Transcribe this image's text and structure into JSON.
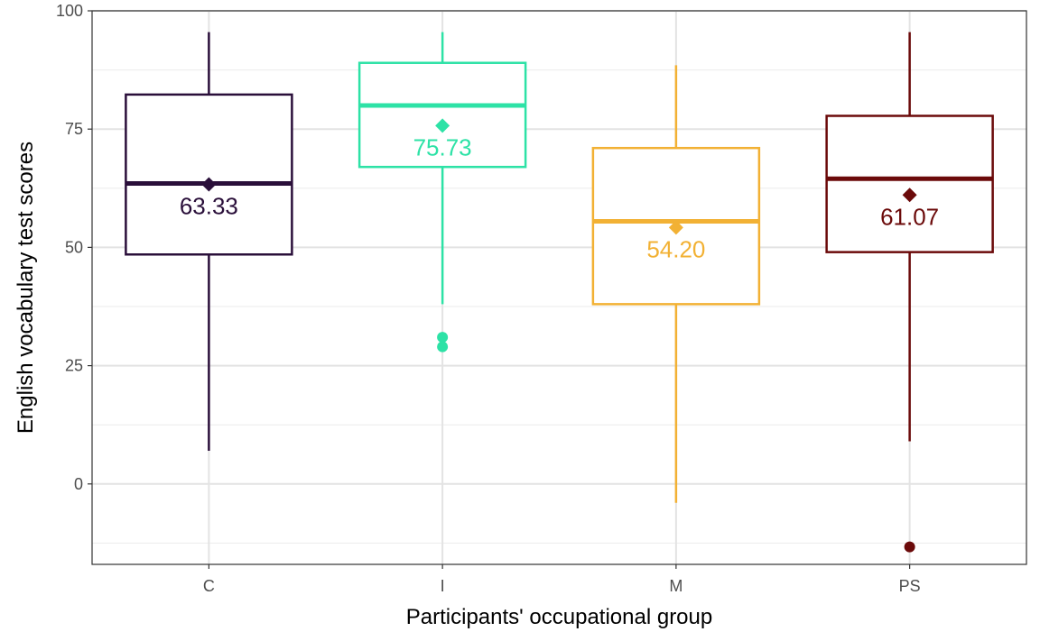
{
  "chart_data": {
    "type": "box",
    "title": "",
    "xlabel": "Participants' occupational group",
    "ylabel": "English vocabulary test scores",
    "ylim": [
      -17,
      100
    ],
    "yticks": [
      0,
      25,
      50,
      75,
      100
    ],
    "grid": true,
    "legend": "none",
    "categories": [
      "C",
      "I",
      "M",
      "PS"
    ],
    "colors": [
      "#2a0f3a",
      "#2de2a6",
      "#f2b134",
      "#6b0a0a"
    ],
    "boxes": [
      {
        "group": "C",
        "whisker_low": 7,
        "q1": 48.5,
        "median": 63.5,
        "q3": 82.3,
        "whisker_high": 95.5,
        "mean": 63.33,
        "mean_label": "63.33",
        "outliers": []
      },
      {
        "group": "I",
        "whisker_low": 38,
        "q1": 67,
        "median": 80,
        "q3": 89,
        "whisker_high": 95.5,
        "mean": 75.73,
        "mean_label": "75.73",
        "outliers": [
          31,
          29
        ]
      },
      {
        "group": "M",
        "whisker_low": -4,
        "q1": 38,
        "median": 55.5,
        "q3": 71,
        "whisker_high": 88.5,
        "mean": 54.2,
        "mean_label": "54.20",
        "outliers": []
      },
      {
        "group": "PS",
        "whisker_low": 9,
        "q1": 49,
        "median": 64.5,
        "q3": 77.8,
        "whisker_high": 95.5,
        "mean": 61.07,
        "mean_label": "61.07",
        "outliers": [
          -13.3
        ]
      }
    ]
  }
}
